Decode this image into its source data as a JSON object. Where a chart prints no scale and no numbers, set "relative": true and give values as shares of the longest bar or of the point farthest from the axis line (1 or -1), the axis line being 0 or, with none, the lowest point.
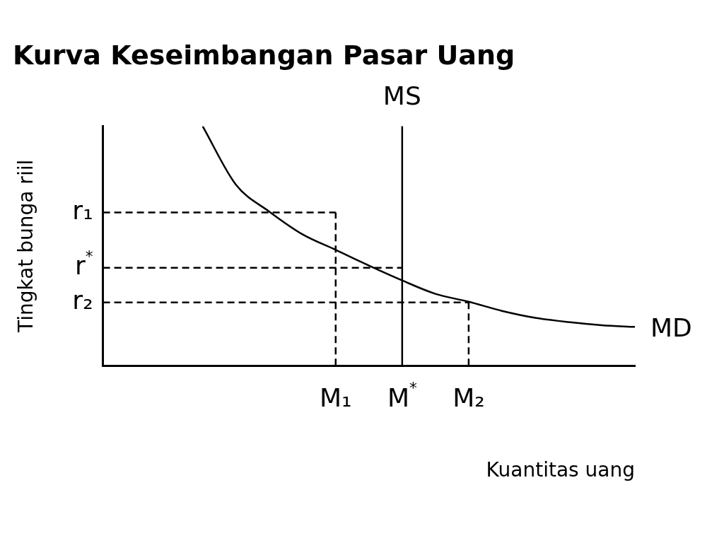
{
  "chart_data": {
    "type": "line",
    "title": "Kurva Keseimbangan Pasar Uang",
    "xlabel": "Kuantitas uang",
    "ylabel": "Tingkat bunga riil",
    "relative": true,
    "tick_labels": "x",
    "categories": [
      null,
      null,
      null,
      null,
      null,
      null,
      null,
      "M₁",
      null,
      "M$^{*}$",
      null,
      "M₂",
      null,
      null,
      null,
      null,
      null
    ],
    "series": [
      {
        "name": "MD",
        "color": "#000000",
        "line_style": "solid",
        "values": [
          null,
          null,
          null,
          1,
          0.756,
          0.644,
          0.549,
          0.484,
          0.418,
          0.356,
          0.3,
          0.267,
          0.229,
          0.2,
          0.182,
          0.169,
          0.162
        ]
      },
      {
        "name": "r₁",
        "color": "#000000",
        "line_style": "dashed",
        "values": [
          0.64,
          0.64,
          0.64,
          0.64,
          0.64,
          0.64,
          0.64,
          0.64,
          null,
          null,
          null,
          null,
          null,
          null,
          null,
          null,
          null
        ]
      },
      {
        "name": "r$^{*}$",
        "color": "#000000",
        "line_style": "dashed",
        "values": [
          0.409,
          0.409,
          0.409,
          0.409,
          0.409,
          0.409,
          0.409,
          0.409,
          0.409,
          0.409,
          null,
          null,
          null,
          null,
          null,
          null,
          null
        ]
      },
      {
        "name": "r₂",
        "color": "#000000",
        "line_style": "dashed",
        "values": [
          0.264,
          0.264,
          0.264,
          0.264,
          0.264,
          0.264,
          0.264,
          0.264,
          0.264,
          0.264,
          0.264,
          0.264,
          null,
          null,
          null,
          null,
          null
        ]
      }
    ],
    "ref_lines": [
      {
        "axis": "x",
        "value": "M$^{*}$",
        "label": "MS",
        "color": "#000000",
        "line_style": "solid"
      },
      {
        "axis": "x",
        "value": "M₁",
        "label": null,
        "color": "#000000",
        "line_style": "dashed"
      },
      {
        "axis": "x",
        "value": "M₂",
        "label": null,
        "color": "#000000",
        "line_style": "dashed"
      }
    ]
  }
}
